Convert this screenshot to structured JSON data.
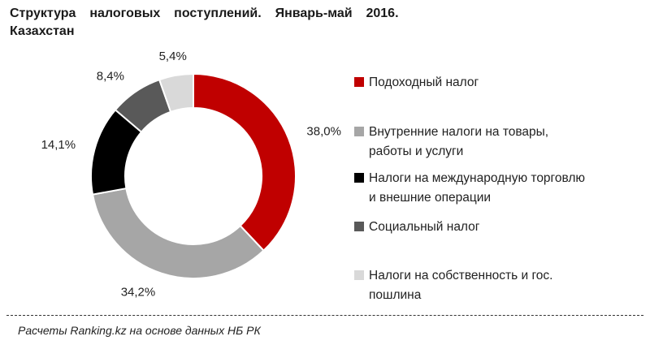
{
  "title": "Структура  налоговых  поступлений.  Январь-май  2016.\nКазахстан",
  "source": "Расчеты Ranking.kz на основе данных  НБ РК",
  "chart_data": {
    "type": "pie",
    "variant": "donut",
    "title": "Структура налоговых поступлений. Январь-май 2016. Казахстан",
    "categories": [
      "Подоходный налог",
      "Внутренние налоги на товары, работы и услуги",
      "Налоги на международную торговлю и внешние операции",
      "Социальный налог",
      "Налоги на собственность и гос. пошлина"
    ],
    "values": [
      38.0,
      34.2,
      14.1,
      8.4,
      5.4
    ],
    "data_labels": [
      "38,0%",
      "34,2%",
      "14,1%",
      "8,4%",
      "5,4%"
    ],
    "colors": [
      "#c00000",
      "#a6a6a6",
      "#000000",
      "#595959",
      "#d9d9d9"
    ],
    "legend_position": "right",
    "start_angle": "top, clockwise"
  },
  "legend": [
    {
      "lines": [
        "Подоходный налог"
      ],
      "color": "#c00000"
    },
    {
      "lines": [
        "Внутренние налоги на товары,",
        "работы и услуги"
      ],
      "color": "#a6a6a6"
    },
    {
      "lines": [
        "Налоги на международную торговлю",
        "и внешние операции"
      ],
      "color": "#000000"
    },
    {
      "lines": [
        "Социальный налог"
      ],
      "color": "#595959"
    },
    {
      "lines": [
        "Налоги на собственность и гос.",
        "пошлина"
      ],
      "color": "#d9d9d9"
    }
  ]
}
